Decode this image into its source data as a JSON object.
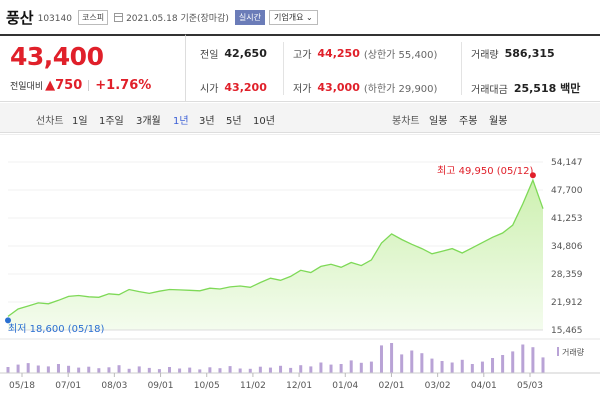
{
  "header": {
    "stock_name": "풍산",
    "code": "103140",
    "market": "코스피",
    "date_text": "2021.05.18 기준(장마감)",
    "live_label": "실시간",
    "company_label": "기업개요"
  },
  "price": {
    "current": "43,400",
    "change_label": "전일대비",
    "change_value": "▲750",
    "change_rate": "+1.76%"
  },
  "stats": {
    "prev_close_label": "전일",
    "prev_close": "42,650",
    "high_label": "고가",
    "high": "44,250",
    "upper_limit": "(상한가 55,400)",
    "volume_label": "거래량",
    "volume": "586,315",
    "open_label": "시가",
    "open": "43,200",
    "low_label": "저가",
    "low": "43,000",
    "lower_limit": "(하한가 29,900)",
    "amount_label": "거래대금",
    "amount": "25,518 백만"
  },
  "toolbar": {
    "line_chart_label": "선차트",
    "periods": [
      "1일",
      "1주일",
      "3개월",
      "1년",
      "3년",
      "5년",
      "10년"
    ],
    "active_period": "1년",
    "candle_label": "봉차트",
    "candles": [
      "일봉",
      "주봉",
      "월봉"
    ]
  },
  "colors": {
    "up": "#e0202a",
    "active": "#3b5fd6",
    "line": "#7ed957",
    "fill": "#e6f8d6",
    "volume_bar": "#b9a3d6",
    "low_marker": "#2a6fd1"
  },
  "chart_data": {
    "type": "area",
    "title": "",
    "xlabel": "",
    "ylabel": "",
    "ylim": [
      15465,
      54147
    ],
    "y_ticks": [
      "54,147",
      "47,700",
      "41,253",
      "34,806",
      "28,359",
      "21,912",
      "15,465"
    ],
    "x_ticks": [
      "05/18",
      "07/01",
      "08/03",
      "09/01",
      "10/05",
      "11/02",
      "12/01",
      "01/04",
      "02/01",
      "03/02",
      "04/01",
      "05/03"
    ],
    "high_label": "최고 49,950 (05/12)",
    "low_label": "최저 18,600 (05/18)",
    "volume_legend": "거래량",
    "x": [
      "05/18",
      "05/25",
      "06/01",
      "06/08",
      "06/15",
      "06/22",
      "06/29",
      "07/06",
      "07/13",
      "07/20",
      "07/27",
      "08/03",
      "08/10",
      "08/17",
      "08/24",
      "08/31",
      "09/07",
      "09/14",
      "09/21",
      "09/28",
      "10/05",
      "10/12",
      "10/19",
      "10/26",
      "11/02",
      "11/09",
      "11/16",
      "11/23",
      "11/30",
      "12/07",
      "12/14",
      "12/21",
      "12/28",
      "01/04",
      "01/11",
      "01/18",
      "01/25",
      "02/01",
      "02/08",
      "02/15",
      "02/22",
      "03/02",
      "03/08",
      "03/15",
      "03/22",
      "03/29",
      "04/05",
      "04/12",
      "04/19",
      "04/26",
      "05/03",
      "05/10",
      "05/12",
      "05/18"
    ],
    "values": [
      18600,
      20300,
      21000,
      21700,
      21500,
      22300,
      23200,
      23400,
      23100,
      23000,
      23800,
      23600,
      24800,
      24300,
      23900,
      24400,
      24800,
      24700,
      24600,
      24500,
      25100,
      24900,
      25400,
      25600,
      25300,
      26400,
      27400,
      26900,
      27800,
      29200,
      28700,
      30100,
      30600,
      29900,
      31000,
      30300,
      31600,
      35500,
      37600,
      36300,
      35200,
      34200,
      33000,
      33600,
      34200,
      33200,
      34400,
      35600,
      36800,
      37800,
      39600,
      44500,
      49950,
      43400
    ],
    "volume": [
      0.2,
      0.28,
      0.33,
      0.25,
      0.22,
      0.3,
      0.24,
      0.18,
      0.21,
      0.16,
      0.19,
      0.26,
      0.14,
      0.22,
      0.17,
      0.13,
      0.2,
      0.15,
      0.18,
      0.12,
      0.19,
      0.16,
      0.23,
      0.15,
      0.14,
      0.21,
      0.18,
      0.24,
      0.17,
      0.26,
      0.22,
      0.35,
      0.28,
      0.3,
      0.42,
      0.34,
      0.38,
      0.92,
      1.0,
      0.62,
      0.75,
      0.66,
      0.48,
      0.4,
      0.35,
      0.44,
      0.3,
      0.38,
      0.5,
      0.6,
      0.72,
      0.95,
      0.86,
      0.52
    ]
  }
}
